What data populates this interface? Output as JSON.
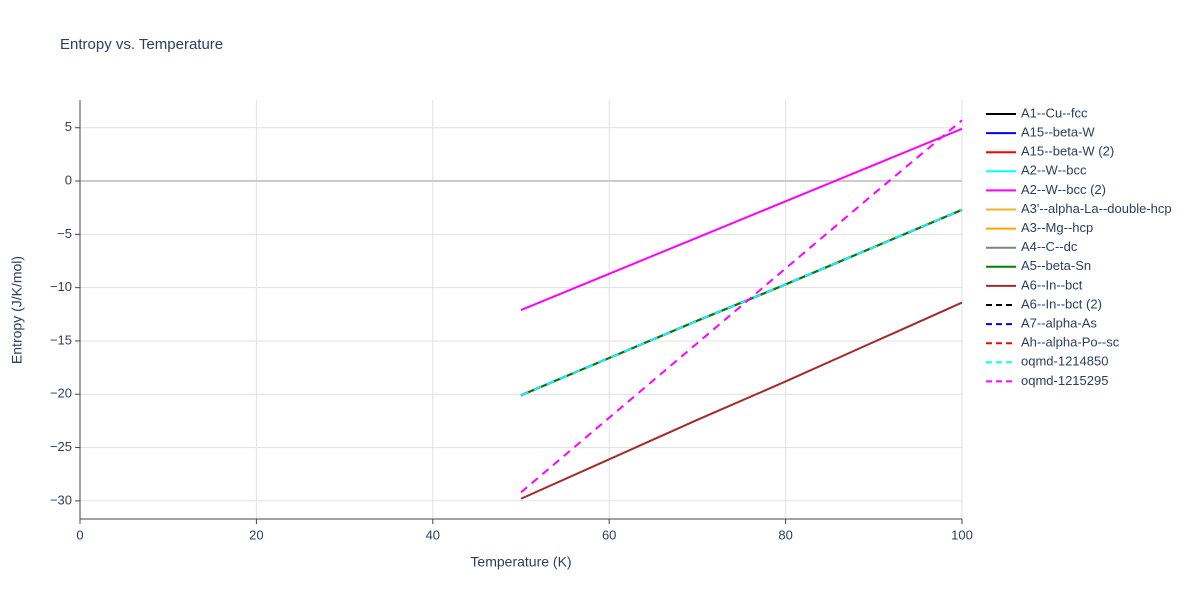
{
  "chart_data": {
    "type": "line",
    "title": "Entropy vs. Temperature",
    "xlabel": "Temperature (K)",
    "ylabel": "Entropy (J/K/mol)",
    "x": [
      50,
      60,
      70,
      80,
      90,
      100
    ],
    "xlim": [
      0,
      100
    ],
    "xticks": [
      0,
      20,
      40,
      60,
      80,
      100
    ],
    "ylim": [
      -31.7,
      7.6
    ],
    "yticks": [
      {
        "value": -30,
        "label": "−30"
      },
      {
        "value": -25,
        "label": "−25"
      },
      {
        "value": -20,
        "label": "−20"
      },
      {
        "value": -15,
        "label": "−15"
      },
      {
        "value": -10,
        "label": "−10"
      },
      {
        "value": -5,
        "label": "−5"
      },
      0,
      5
    ],
    "grid": true,
    "series": [
      {
        "name": "A1--Cu--fcc",
        "color": "#000000",
        "dash": false,
        "values": [
          -20.1,
          -16.6,
          -13.1,
          -9.7,
          -6.2,
          -2.7
        ]
      },
      {
        "name": "A15--beta-W",
        "color": "#0000ff",
        "dash": false,
        "values": [
          -20.1,
          -16.6,
          -13.1,
          -9.7,
          -6.2,
          -2.7
        ]
      },
      {
        "name": "A15--beta-W (2)",
        "color": "#ff0000",
        "dash": false,
        "values": [
          -20.1,
          -16.6,
          -13.1,
          -9.7,
          -6.2,
          -2.7
        ]
      },
      {
        "name": "A2--W--bcc",
        "color": "#00ffff",
        "dash": false,
        "values": [
          -20.1,
          -16.6,
          -13.1,
          -9.7,
          -6.2,
          -2.7
        ]
      },
      {
        "name": "A2--W--bcc (2)",
        "color": "#ff00ff",
        "dash": false,
        "values": [
          -12.1,
          -8.7,
          -5.3,
          -1.9,
          1.5,
          4.9
        ]
      },
      {
        "name": "A3'--alpha-La--double-hcp",
        "color": "#f0b428",
        "dash": false,
        "values": [
          -20.1,
          -16.6,
          -13.1,
          -9.7,
          -6.2,
          -2.7
        ]
      },
      {
        "name": "A3--Mg--hcp",
        "color": "#ffa500",
        "dash": false,
        "values": [
          -20.1,
          -16.6,
          -13.1,
          -9.7,
          -6.2,
          -2.7
        ]
      },
      {
        "name": "A4--C--dc",
        "color": "#808080",
        "dash": false,
        "values": [
          -20.1,
          -16.6,
          -13.1,
          -9.7,
          -6.2,
          -2.7
        ]
      },
      {
        "name": "A5--beta-Sn",
        "color": "#008000",
        "dash": false,
        "values": [
          -20.1,
          -16.6,
          -13.1,
          -9.7,
          -6.2,
          -2.7
        ]
      },
      {
        "name": "A6--In--bct",
        "color": "#a52a2a",
        "dash": false,
        "values": [
          -29.8,
          -26.1,
          -22.4,
          -18.8,
          -15.1,
          -11.4
        ]
      },
      {
        "name": "A6--In--bct (2)",
        "color": "#000000",
        "dash": true,
        "values": [
          -20.1,
          -16.6,
          -13.1,
          -9.7,
          -6.2,
          -2.7
        ]
      },
      {
        "name": "A7--alpha-As",
        "color": "#0000ff",
        "dash": true,
        "values": [
          -20.1,
          -16.6,
          -13.1,
          -9.7,
          -6.2,
          -2.7
        ]
      },
      {
        "name": "Ah--alpha-Po--sc",
        "color": "#ff0000",
        "dash": true,
        "values": [
          -20.1,
          -16.6,
          -13.1,
          -9.7,
          -6.2,
          -2.7
        ]
      },
      {
        "name": "oqmd-1214850",
        "color": "#00ffff",
        "dash": true,
        "values": [
          -20.1,
          -16.6,
          -13.1,
          -9.7,
          -6.2,
          -2.7
        ]
      },
      {
        "name": "oqmd-1215295",
        "color": "#ff00ff",
        "dash": true,
        "values": [
          -29.2,
          -22.2,
          -15.2,
          -8.2,
          -1.2,
          5.7
        ]
      }
    ]
  }
}
